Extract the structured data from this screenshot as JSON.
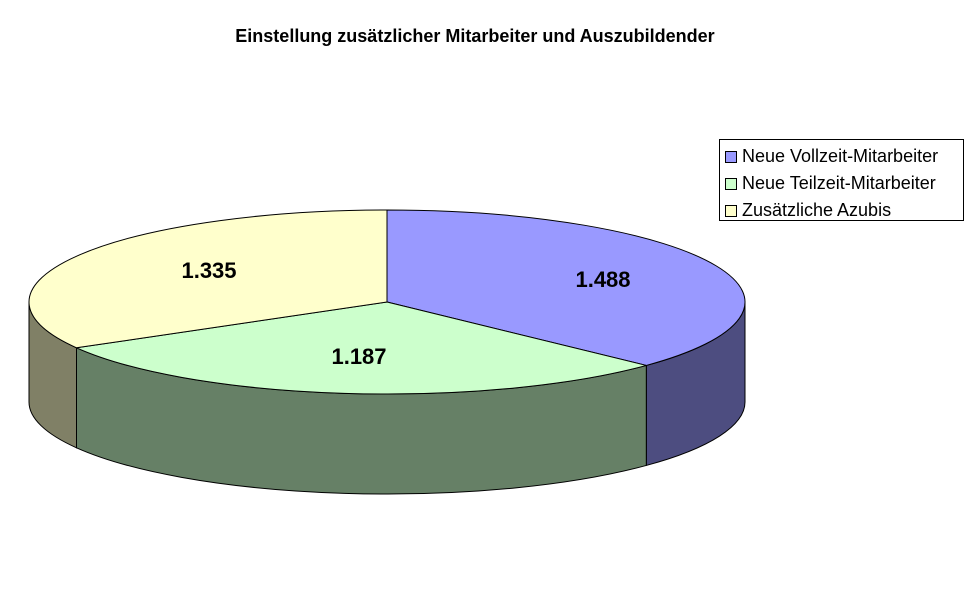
{
  "chart_data": {
    "type": "pie",
    "title": "Einstellung zusätzlicher Mitarbeiter und Auszubildender",
    "slices": [
      {
        "name": "Neue Vollzeit-Mitarbeiter",
        "label": "1.488",
        "value": 1488,
        "color": "#9999ff",
        "side_color": "#4d4d80"
      },
      {
        "name": "Neue Teilzeit-Mitarbeiter",
        "label": "1.187",
        "value": 1187,
        "color": "#ccffcc",
        "side_color": "#668066"
      },
      {
        "name": "Zusätzliche Azubis",
        "label": "1.335",
        "value": 1335,
        "color": "#ffffcc",
        "side_color": "#808066"
      }
    ],
    "legend_position": "right"
  }
}
